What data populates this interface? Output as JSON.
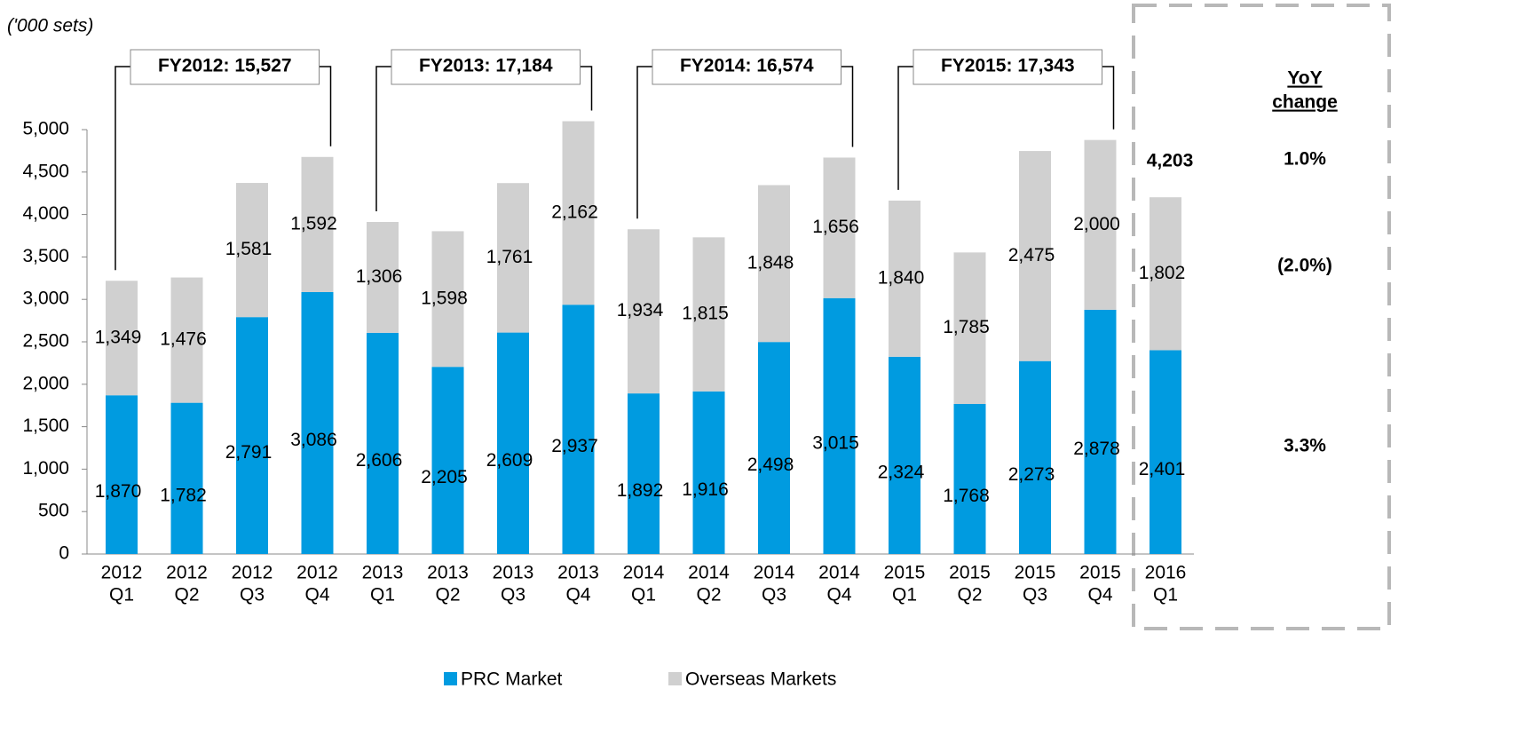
{
  "chart_data": {
    "type": "stacked_bar",
    "unit_label": "('000 sets)",
    "categories": [
      [
        "2012",
        "Q1"
      ],
      [
        "2012",
        "Q2"
      ],
      [
        "2012",
        "Q3"
      ],
      [
        "2012",
        "Q4"
      ],
      [
        "2013",
        "Q1"
      ],
      [
        "2013",
        "Q2"
      ],
      [
        "2013",
        "Q3"
      ],
      [
        "2013",
        "Q4"
      ],
      [
        "2014",
        "Q1"
      ],
      [
        "2014",
        "Q2"
      ],
      [
        "2014",
        "Q3"
      ],
      [
        "2014",
        "Q4"
      ],
      [
        "2015",
        "Q1"
      ],
      [
        "2015",
        "Q2"
      ],
      [
        "2015",
        "Q3"
      ],
      [
        "2015",
        "Q4"
      ],
      [
        "2016",
        "Q1"
      ]
    ],
    "series": [
      {
        "name": "PRC Market",
        "color": "#009be0",
        "values": [
          1870,
          1782,
          2791,
          3086,
          2606,
          2205,
          2609,
          2937,
          1892,
          1916,
          2498,
          3015,
          2324,
          1768,
          2273,
          2878,
          2401
        ],
        "value_labels": [
          "1,870",
          "1,782",
          "2,791",
          "3,086",
          "2,606",
          "2,205",
          "2,609",
          "2,937",
          "1,892",
          "1,916",
          "2,498",
          "3,015",
          "2,324",
          "1,768",
          "2,273",
          "2,878",
          "2,401"
        ]
      },
      {
        "name": "Overseas Markets",
        "color": "#d0d0d0",
        "values": [
          1349,
          1476,
          1581,
          1592,
          1306,
          1598,
          1761,
          2162,
          1934,
          1815,
          1848,
          1656,
          1840,
          1785,
          2475,
          2000,
          1802
        ],
        "value_labels": [
          "1,349",
          "1,476",
          "1,581",
          "1,592",
          "1,306",
          "1,598",
          "1,761",
          "2,162",
          "1,934",
          "1,815",
          "1,848",
          "1,656",
          "1,840",
          "1,785",
          "2,475",
          "2,000",
          "1,802"
        ]
      }
    ],
    "ylim": [
      0,
      5000
    ],
    "yticks": [
      0,
      500,
      {
        "value": 1000,
        "label": "1,000"
      },
      {
        "value": 1500,
        "label": "1,500"
      },
      {
        "value": 2000,
        "label": "2,000"
      },
      {
        "value": 2500,
        "label": "2,500"
      },
      {
        "value": 3000,
        "label": "3,000"
      },
      {
        "value": 3500,
        "label": "3,500"
      },
      {
        "value": 4000,
        "label": "4,000"
      },
      {
        "value": 4500,
        "label": "4,500"
      },
      {
        "value": 5000,
        "label": "5,000"
      }
    ],
    "fy_annotations": [
      "FY2012: 15,527",
      "FY2013: 17,184",
      "FY2014: 16,574",
      "FY2015: 17,343"
    ],
    "total_label": "4,203",
    "yoy": {
      "title": [
        "YoY",
        "change"
      ],
      "values": [
        "1.0%",
        "(2.0%)",
        "3.3%"
      ]
    },
    "legend": "bottom"
  }
}
